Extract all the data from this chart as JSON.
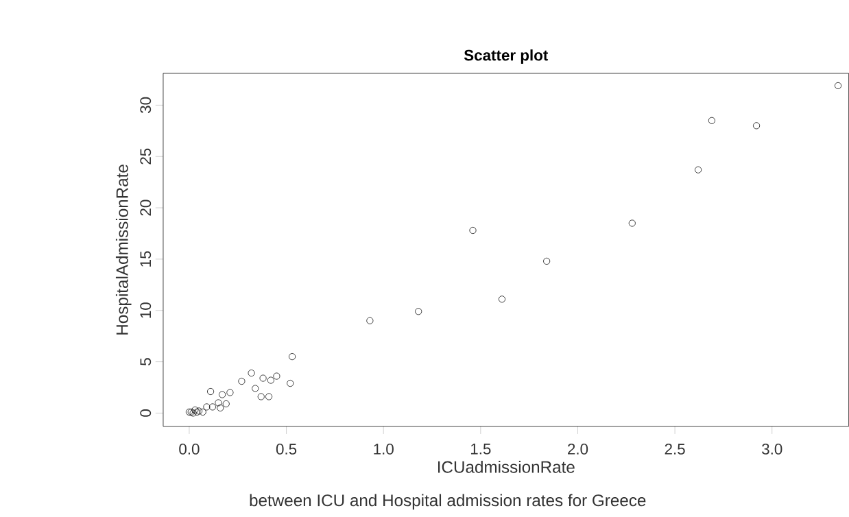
{
  "chart_data": {
    "type": "scatter",
    "title": "Scatter plot",
    "xlabel": "ICUadmissionRate",
    "subtitle": "between ICU and Hospital admission rates for Greece",
    "ylabel": "HospitalAdmissionRate",
    "marker": "circle",
    "color": "#000000",
    "x": [
      3.34,
      2.69,
      2.92,
      2.62,
      2.28,
      1.46,
      1.84,
      1.61,
      1.18,
      0.93,
      0.53,
      0.32,
      0.27,
      0.38,
      0.42,
      0.45,
      0.52,
      0.34,
      0.37,
      0.41,
      0.11,
      0.17,
      0.21,
      0.19,
      0.15,
      0.16,
      0.12,
      0.09,
      0.07,
      0.05,
      0.03,
      0.01,
      0.0,
      0.02,
      0.04
    ],
    "values": [
      31.9,
      28.5,
      28.0,
      23.7,
      18.5,
      17.8,
      14.8,
      11.1,
      9.9,
      9.0,
      5.5,
      3.9,
      3.1,
      3.4,
      3.2,
      3.6,
      2.9,
      2.4,
      1.6,
      1.6,
      2.1,
      1.8,
      2.0,
      0.9,
      1.0,
      0.5,
      0.6,
      0.6,
      0.1,
      0.2,
      0.3,
      0.1,
      0.1,
      0.0,
      0.1
    ],
    "xlim": [
      -0.134,
      3.395
    ],
    "ylim": [
      -1.29,
      33.1
    ],
    "xticks": [
      {
        "value": 0,
        "label": "0.0"
      },
      {
        "value": 0.5,
        "label": "0.5"
      },
      {
        "value": 1,
        "label": "1.0"
      },
      {
        "value": 1.5,
        "label": "1.5"
      },
      {
        "value": 2,
        "label": "2.0"
      },
      {
        "value": 2.5,
        "label": "2.5"
      },
      {
        "value": 3,
        "label": "3.0"
      }
    ],
    "yticks": [
      0,
      5,
      10,
      15,
      20,
      25,
      30
    ],
    "grid": false
  }
}
